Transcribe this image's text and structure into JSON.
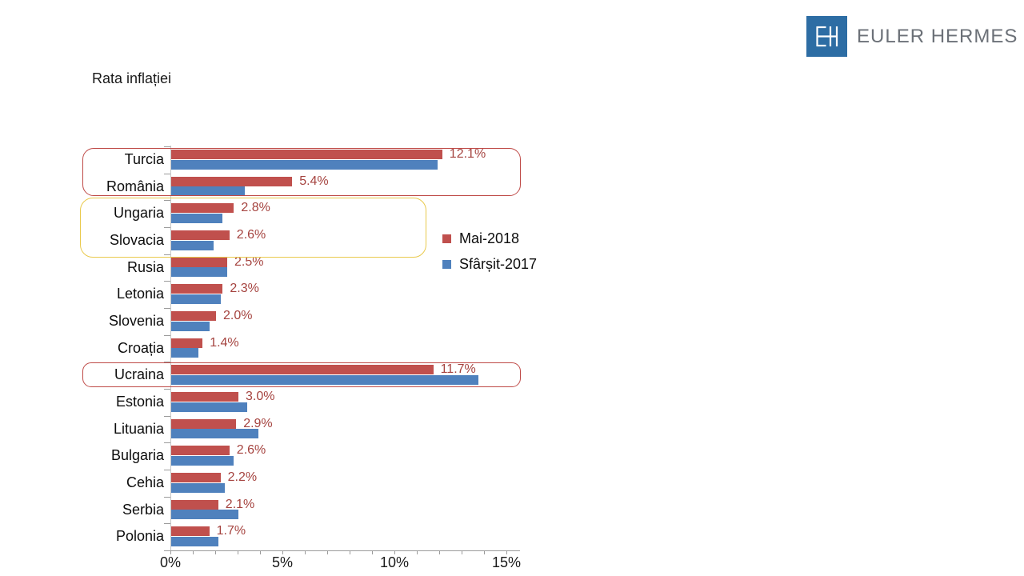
{
  "title": "Rata inflației",
  "logo": {
    "monogram": "EH",
    "brand": "EULER HERMES",
    "square_color": "#2d6da4",
    "text_color": "#6c7178"
  },
  "chart_data": {
    "type": "bar",
    "orientation": "horizontal",
    "title": "Rata inflației",
    "categories": [
      "Turcia",
      "România",
      "Ungaria",
      "Slovacia",
      "Rusia",
      "Letonia",
      "Slovenia",
      "Croația",
      "Ucraina",
      "Estonia",
      "Lituania",
      "Bulgaria",
      "Cehia",
      "Serbia",
      "Polonia"
    ],
    "series": [
      {
        "name": "Mai-2018",
        "color": "#c0504d",
        "values": [
          12.1,
          5.4,
          2.8,
          2.6,
          2.5,
          2.3,
          2.0,
          1.4,
          11.7,
          3.0,
          2.9,
          2.6,
          2.2,
          2.1,
          1.7
        ],
        "data_labels": [
          "12.1%",
          "5.4%",
          "2.8%",
          "2.6%",
          "2.5%",
          "2.3%",
          "2.0%",
          "1.4%",
          "11.7%",
          "3.0%",
          "2.9%",
          "2.6%",
          "2.2%",
          "2.1%",
          "1.7%"
        ]
      },
      {
        "name": "Sfârșit-2017",
        "color": "#4f81bd",
        "values": [
          11.9,
          3.3,
          2.3,
          1.9,
          2.5,
          2.2,
          1.7,
          1.2,
          13.7,
          3.4,
          3.9,
          2.8,
          2.4,
          3.0,
          2.1
        ],
        "data_labels": []
      }
    ],
    "x_tick_labels": [
      "0%",
      "5%",
      "10%",
      "15%"
    ],
    "x_tick_values": [
      0,
      5,
      10,
      15
    ],
    "xlim": [
      0,
      15.5
    ],
    "minor_tick_step_pct": 1,
    "data_label_color": "#a5433f",
    "legend_position": "middle-right",
    "grid": false
  },
  "annotations": {
    "boxes": [
      {
        "countries": [
          "Turcia",
          "România"
        ],
        "border_color": "#bf4a47"
      },
      {
        "countries": [
          "Ungaria",
          "Slovacia"
        ],
        "border_color": "#e9c94c"
      },
      {
        "countries": [
          "Ucraina"
        ],
        "border_color": "#bf4a47"
      }
    ]
  }
}
